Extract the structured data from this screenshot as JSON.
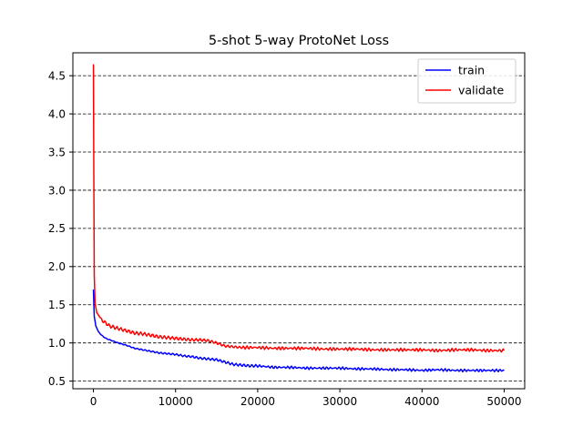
{
  "chart_data": {
    "type": "line",
    "title": "5-shot 5-way ProtoNet Loss",
    "xlabel": "",
    "ylabel": "",
    "xlim": [
      -2500,
      52500
    ],
    "ylim": [
      0.4,
      4.8
    ],
    "x_ticks": [
      0,
      10000,
      20000,
      30000,
      40000,
      50000
    ],
    "x_tick_labels": [
      "0",
      "10000",
      "20000",
      "30000",
      "40000",
      "50000"
    ],
    "y_ticks": [
      0.5,
      1.0,
      1.5,
      2.0,
      2.5,
      3.0,
      3.5,
      4.0,
      4.5
    ],
    "y_tick_labels": [
      "0.5",
      "1.0",
      "1.5",
      "2.0",
      "2.5",
      "3.0",
      "3.5",
      "4.0",
      "4.5"
    ],
    "grid": "horizontal dashed",
    "legend_position": "top-right",
    "series": [
      {
        "name": "train",
        "color": "#0000ff",
        "x": [
          0,
          100,
          300,
          600,
          1000,
          1500,
          2000,
          3000,
          4000,
          5000,
          6000,
          7000,
          8000,
          9000,
          10000,
          11000,
          12000,
          13000,
          14000,
          15000,
          16000,
          17000,
          18000,
          19000,
          20000,
          22000,
          24000,
          26000,
          28000,
          30000,
          32000,
          34000,
          36000,
          38000,
          40000,
          42000,
          44000,
          46000,
          48000,
          50000
        ],
        "y": [
          1.7,
          1.35,
          1.22,
          1.15,
          1.1,
          1.06,
          1.04,
          1.0,
          0.97,
          0.93,
          0.91,
          0.89,
          0.87,
          0.86,
          0.85,
          0.83,
          0.82,
          0.8,
          0.79,
          0.78,
          0.75,
          0.72,
          0.71,
          0.7,
          0.7,
          0.68,
          0.68,
          0.67,
          0.67,
          0.67,
          0.66,
          0.66,
          0.65,
          0.65,
          0.64,
          0.65,
          0.64,
          0.64,
          0.64,
          0.64
        ]
      },
      {
        "name": "validate",
        "color": "#ff0000",
        "x": [
          0,
          50,
          100,
          200,
          400,
          700,
          1000,
          1500,
          2000,
          3000,
          4000,
          5000,
          6000,
          7000,
          8000,
          9000,
          10000,
          11000,
          12000,
          13000,
          14000,
          15000,
          16000,
          17000,
          18000,
          20000,
          22000,
          24000,
          26000,
          28000,
          30000,
          32000,
          34000,
          36000,
          38000,
          40000,
          42000,
          44000,
          46000,
          48000,
          50000
        ],
        "y": [
          4.65,
          3.2,
          1.9,
          1.52,
          1.4,
          1.35,
          1.3,
          1.26,
          1.22,
          1.19,
          1.16,
          1.13,
          1.12,
          1.1,
          1.08,
          1.07,
          1.06,
          1.05,
          1.04,
          1.04,
          1.03,
          1.0,
          0.96,
          0.95,
          0.94,
          0.94,
          0.93,
          0.93,
          0.93,
          0.92,
          0.92,
          0.92,
          0.91,
          0.91,
          0.91,
          0.91,
          0.9,
          0.91,
          0.91,
          0.9,
          0.9
        ]
      }
    ]
  }
}
